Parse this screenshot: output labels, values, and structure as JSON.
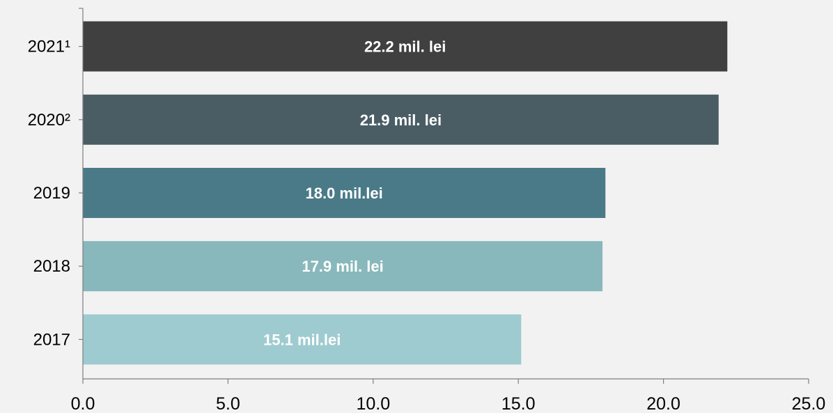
{
  "chart_data": {
    "type": "bar",
    "orientation": "horizontal",
    "categories": [
      "2017",
      "2018",
      "2019",
      "2020²",
      "2021¹"
    ],
    "values": [
      15.1,
      17.9,
      18.0,
      21.9,
      22.2
    ],
    "data_labels": [
      "15.1 mil.lei",
      "17.9 mil. lei",
      "18.0 mil.lei",
      "21.9 mil. lei",
      "22.2 mil. lei"
    ],
    "bar_colors": [
      "#9ecbd0",
      "#88b8bb",
      "#4a7a87",
      "#4a5d64",
      "#404040"
    ],
    "xlim": [
      0,
      25
    ],
    "x_ticks": [
      "0.0",
      "5.0",
      "10.0",
      "15.0",
      "20.0",
      "25.0"
    ],
    "title": "",
    "xlabel": "",
    "ylabel": "",
    "grid": false,
    "legend": "none",
    "background": "#f2f2f2"
  }
}
